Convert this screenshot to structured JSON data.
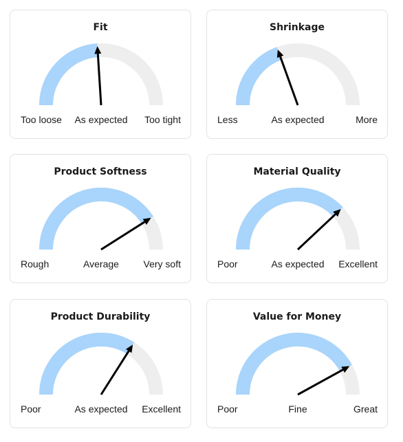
{
  "colors": {
    "track": "#eeeeee",
    "fill": "#a9d4fb",
    "needle": "#000000",
    "card_border": "#e2e2e2"
  },
  "gauges": [
    {
      "title": "Fit",
      "left_label": "Too loose",
      "mid_label": "As expected",
      "right_label": "Too tight",
      "value": 0.48
    },
    {
      "title": "Shrinkage",
      "left_label": "Less",
      "mid_label": "As expected",
      "right_label": "More",
      "value": 0.39
    },
    {
      "title": "Product Softness",
      "left_label": "Rough",
      "mid_label": "Average",
      "right_label": "Very soft",
      "value": 0.82
    },
    {
      "title": "Material Quality",
      "left_label": "Poor",
      "mid_label": "As expected",
      "right_label": "Excellent",
      "value": 0.76
    },
    {
      "title": "Product Durability",
      "left_label": "Poor",
      "mid_label": "As expected",
      "right_label": "Excellent",
      "value": 0.68
    },
    {
      "title": "Value for Money",
      "left_label": "Poor",
      "mid_label": "Fine",
      "right_label": "Great",
      "value": 0.84
    }
  ]
}
